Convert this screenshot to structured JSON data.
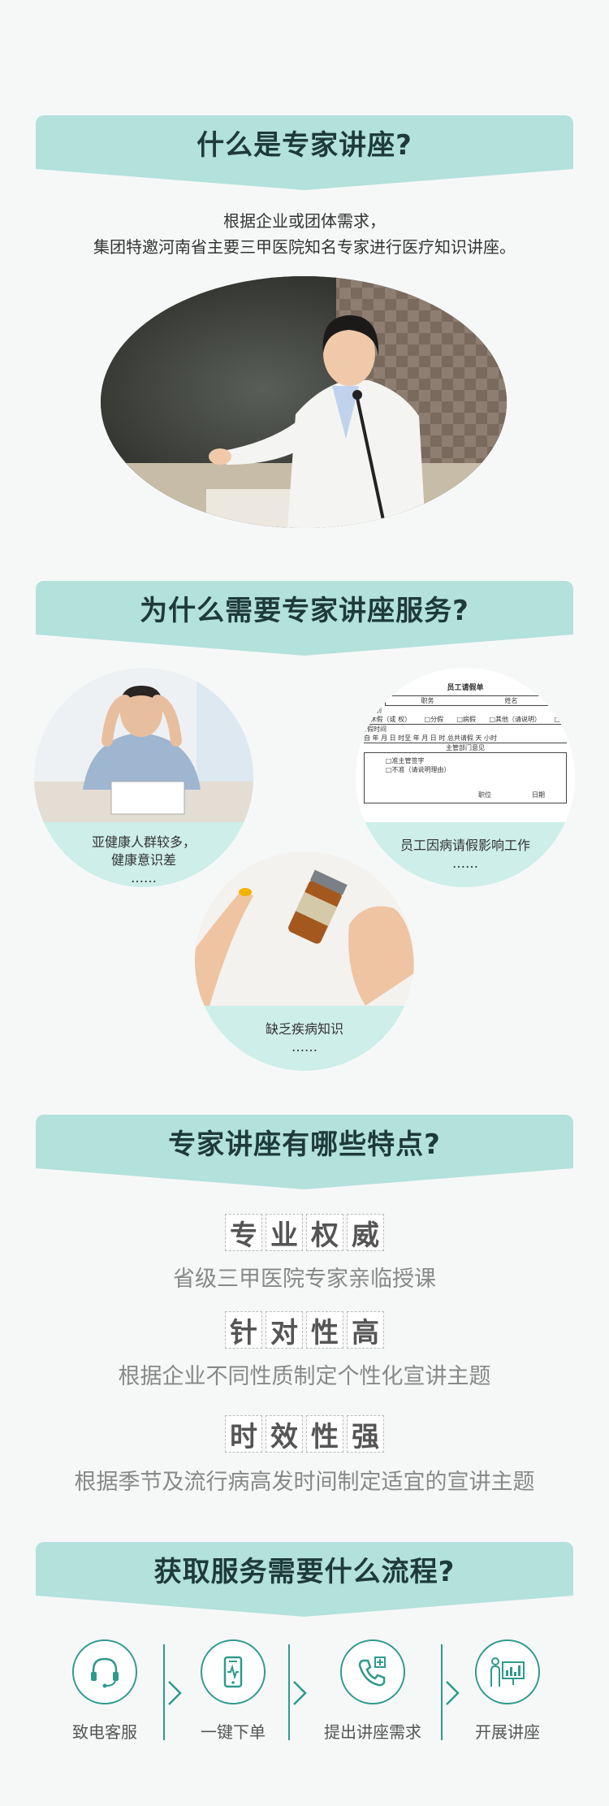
{
  "sections": {
    "s1_title": "什么是专家讲座?",
    "s2_title": "为什么需要专家讲座服务?",
    "s3_title": "专家讲座有哪些特点?",
    "s4_title": "获取服务需要什么流程?"
  },
  "intro": {
    "line1": "根据企业或团体需求，",
    "line2": "集团特邀河南省主要三甲医院知名专家进行医疗知识讲座。"
  },
  "reasons": [
    {
      "line1": "亚健康人群较多，",
      "line2": "健康意识差",
      "line3": "……"
    },
    {
      "line1": "员工因病请假影响工作",
      "line2": "……"
    },
    {
      "line1": "缺乏疾病知识",
      "line2": "……"
    }
  ],
  "leave_form": {
    "title": "员工请假单",
    "row1": [
      "职务",
      "姓名"
    ],
    "row2_label": "类别",
    "row2_opts": [
      "□休假（或 权）",
      "□分假",
      "□病假",
      "□其他（请说明）",
      "□事"
    ],
    "row3_label": "请假时间",
    "row3": "自    年  月  日  时至    年  月  日  时 总共请假    天  小时",
    "row4": "主管部门意见",
    "row5": "□准主管签字",
    "row6": "□不准（请说明理由）",
    "row7": [
      "职位",
      "日期"
    ]
  },
  "features": [
    {
      "chars": [
        "专",
        "业",
        "权",
        "威"
      ],
      "desc": "省级三甲医院专家亲临授课"
    },
    {
      "chars": [
        "针",
        "对",
        "性",
        "高"
      ],
      "desc": "根据企业不同性质制定个性化宣讲主题"
    },
    {
      "chars": [
        "时",
        "效",
        "性",
        "强"
      ],
      "desc": "根据季节及流行病高发时间制定适宜的宣讲主题"
    }
  ],
  "steps": [
    {
      "label": "致电客服",
      "icon": "headset-icon"
    },
    {
      "label": "一键下单",
      "icon": "phone-icon"
    },
    {
      "label": "提出讲座需求",
      "icon": "telephone-plus-icon"
    },
    {
      "label": "开展讲座",
      "icon": "presentation-icon"
    }
  ],
  "colors": {
    "ribbon": "#b3e1dc",
    "caption": "#cdeee9",
    "accent": "#2f9a8c"
  }
}
